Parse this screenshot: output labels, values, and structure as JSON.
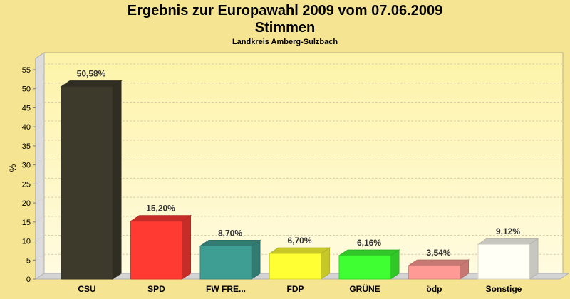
{
  "chart_data": {
    "type": "bar",
    "title": "Ergebnis zur Europawahl 2009 vom 07.06.2009",
    "subtitle": "Stimmen",
    "subsubtitle": "Landkreis Amberg-Sulzbach",
    "xlabel": "",
    "ylabel": "%",
    "ylim": [
      0,
      58
    ],
    "yticks": [
      0,
      5,
      10,
      15,
      20,
      25,
      30,
      35,
      40,
      45,
      50,
      55
    ],
    "grid": true,
    "categories": [
      "CSU",
      "SPD",
      "FW FRE...",
      "FDP",
      "GRÜNE",
      "ödp",
      "Sonstige"
    ],
    "values": [
      50.58,
      15.2,
      8.7,
      6.7,
      6.16,
      3.54,
      9.12
    ],
    "data_labels": [
      "50,58%",
      "15,20%",
      "8,70%",
      "6,70%",
      "6,16%",
      "3,54%",
      "9,12%"
    ],
    "colors": [
      "#3d3a2c",
      "#ff3a33",
      "#3f9e94",
      "#ffff33",
      "#3fff33",
      "#ff9a94",
      "#fffff5"
    ]
  }
}
